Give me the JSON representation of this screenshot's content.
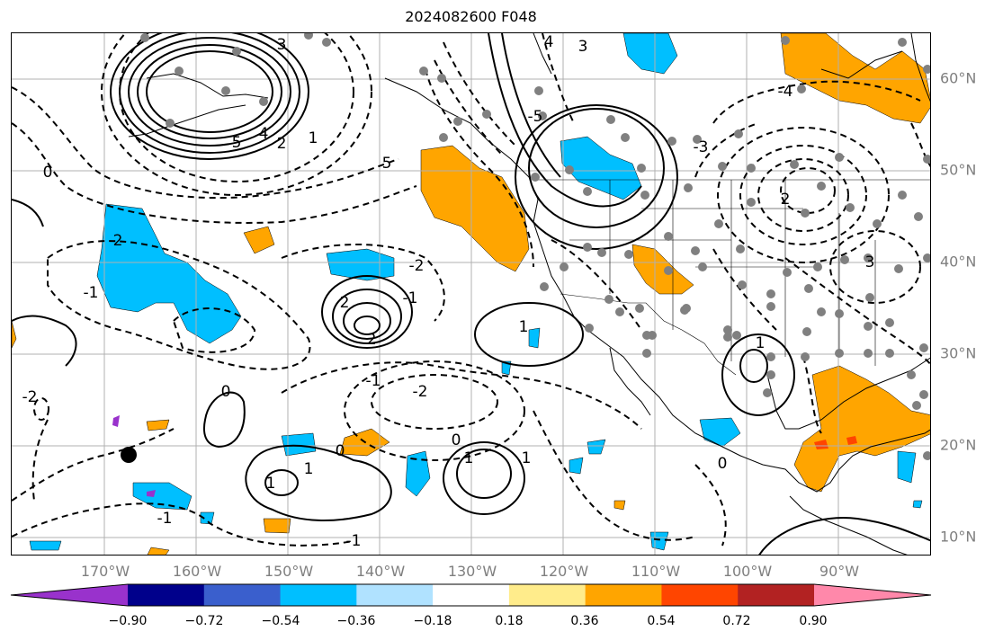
{
  "title": "2024082600 F048",
  "map": {
    "lon_labels": [
      "170°W",
      "160°W",
      "150°W",
      "140°W",
      "130°W",
      "120°W",
      "110°W",
      "100°W",
      "90°W"
    ],
    "lat_labels": [
      "60°N",
      "50°N",
      "40°N",
      "30°N",
      "20°N",
      "10°N"
    ],
    "axis_label_color": "#7f7f7f",
    "grid_color": "#b0b0b0",
    "contour_labels": [
      "5",
      "4",
      "3",
      "2",
      "1",
      "0",
      "5",
      "4",
      "3",
      "2",
      "-1",
      "-2",
      "-1",
      "1",
      "2",
      "2",
      "1",
      "0",
      "1",
      "2",
      "3",
      "-1",
      "-2",
      "0",
      "1",
      "1",
      "0",
      "0",
      "-1",
      "-1",
      "-2",
      "-3",
      "-4",
      "-5",
      "1"
    ]
  },
  "colorbar": {
    "ticks": [
      "−0.90",
      "−0.72",
      "−0.54",
      "−0.36",
      "−0.18",
      "0.18",
      "0.36",
      "0.54",
      "0.72",
      "0.90"
    ],
    "colors": [
      "#9932cc",
      "#00008b",
      "#3a5fcd",
      "#00bfff",
      "#b0e2ff",
      "#ffffff",
      "#ffec8b",
      "#ffa500",
      "#ff4500",
      "#b22222",
      "#ff88aa"
    ]
  }
}
